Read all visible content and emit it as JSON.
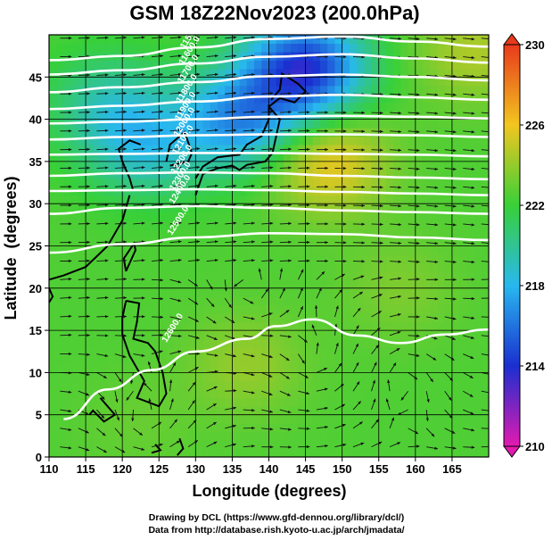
{
  "chart_data": {
    "type": "heatmap",
    "title": "GSM 18Z22Nov2023 (200.0hPa)",
    "xlabel": "Longitude (degrees)",
    "ylabel": "Latitude  (degrees)",
    "xlim": [
      110,
      170
    ],
    "ylim": [
      0,
      50
    ],
    "x_ticks": [
      110,
      115,
      120,
      125,
      130,
      135,
      140,
      145,
      150,
      155,
      160,
      165
    ],
    "y_ticks": [
      0,
      5,
      10,
      15,
      20,
      25,
      30,
      35,
      40,
      45
    ],
    "grid": true,
    "colorbar": {
      "placement": "right",
      "range": [
        210,
        230
      ],
      "ticks": [
        210,
        214,
        218,
        222,
        226,
        230
      ],
      "colors": [
        "#e31ab0",
        "#1a2fd0",
        "#28b8ee",
        "#38d038",
        "#f2c61f",
        "#e83a1c"
      ]
    },
    "shading_centers": [
      {
        "lon": 145,
        "lat": 46,
        "value": 214
      },
      {
        "lon": 136,
        "lat": 40,
        "value": 217
      },
      {
        "lon": 123,
        "lat": 37,
        "value": 219
      },
      {
        "lon": 148,
        "lat": 35,
        "value": 226
      },
      {
        "lon": 118,
        "lat": 42,
        "value": 220
      },
      {
        "lon": 137,
        "lat": 11,
        "value": 224
      },
      {
        "lon": 158,
        "lat": 20,
        "value": 223.5
      },
      {
        "lon": 122,
        "lat": 4,
        "value": 223
      },
      {
        "lon": 168,
        "lat": 48,
        "value": 224.5
      }
    ],
    "contours": [
      {
        "label": "11500.0",
        "points": [
          [
            110,
            47
          ],
          [
            120,
            47.5
          ],
          [
            130,
            48.5
          ],
          [
            140,
            49.5
          ],
          [
            150,
            49.8
          ],
          [
            160,
            49.2
          ],
          [
            170,
            48.6
          ]
        ]
      },
      {
        "label": "11600.0",
        "points": [
          [
            110,
            45.3
          ],
          [
            120,
            45.8
          ],
          [
            130,
            46.6
          ],
          [
            140,
            47.4
          ],
          [
            150,
            47.7
          ],
          [
            160,
            47.2
          ],
          [
            170,
            46.7
          ]
        ]
      },
      {
        "label": "11700.0",
        "points": [
          [
            110,
            43.2
          ],
          [
            120,
            43.8
          ],
          [
            130,
            44.4
          ],
          [
            140,
            45.1
          ],
          [
            150,
            45.3
          ],
          [
            160,
            45
          ],
          [
            170,
            44.6
          ]
        ]
      },
      {
        "label": "11800.0",
        "points": [
          [
            110,
            41.2
          ],
          [
            120,
            41.6
          ],
          [
            130,
            42.1
          ],
          [
            140,
            42.7
          ],
          [
            150,
            42.9
          ],
          [
            160,
            42.6
          ],
          [
            170,
            42.3
          ]
        ]
      },
      {
        "label": "11900.0",
        "points": [
          [
            110,
            39.5
          ],
          [
            120,
            39.7
          ],
          [
            130,
            40
          ],
          [
            140,
            40.3
          ],
          [
            150,
            40.4
          ],
          [
            160,
            40.3
          ],
          [
            170,
            40.1
          ]
        ]
      },
      {
        "label": "12000.0",
        "points": [
          [
            110,
            37.6
          ],
          [
            120,
            37.9
          ],
          [
            130,
            38.1
          ],
          [
            140,
            38.2
          ],
          [
            150,
            38.2
          ],
          [
            160,
            38.1
          ],
          [
            170,
            37.9
          ]
        ]
      },
      {
        "label": "12100.0",
        "points": [
          [
            110,
            35.8
          ],
          [
            120,
            35.9
          ],
          [
            130,
            36
          ],
          [
            140,
            36
          ],
          [
            150,
            35.9
          ],
          [
            160,
            35.8
          ],
          [
            170,
            35.6
          ]
        ]
      },
      {
        "label": "12200.0",
        "points": [
          [
            110,
            33.3
          ],
          [
            120,
            33.6
          ],
          [
            130,
            33.7
          ],
          [
            140,
            33.6
          ],
          [
            150,
            33.3
          ],
          [
            160,
            33.1
          ],
          [
            170,
            32.9
          ]
        ]
      },
      {
        "label": "12300.0",
        "points": [
          [
            110,
            31.5
          ],
          [
            120,
            31.6
          ],
          [
            130,
            31.7
          ],
          [
            140,
            31.6
          ],
          [
            150,
            31.4
          ],
          [
            160,
            31.2
          ],
          [
            170,
            31
          ]
        ]
      },
      {
        "label": "12400.0",
        "points": [
          [
            110,
            28.8
          ],
          [
            120,
            29.5
          ],
          [
            130,
            29.7
          ],
          [
            140,
            29.5
          ],
          [
            150,
            29.2
          ],
          [
            160,
            29
          ],
          [
            170,
            28.8
          ]
        ]
      },
      {
        "label": "12500.0",
        "points": [
          [
            110,
            24.2
          ],
          [
            120,
            25.2
          ],
          [
            130,
            26
          ],
          [
            140,
            26.5
          ],
          [
            150,
            26.4
          ],
          [
            160,
            26
          ],
          [
            170,
            25.7
          ]
        ]
      },
      {
        "label": "12600.0",
        "points": [
          [
            112,
            4.5
          ],
          [
            118,
            8
          ],
          [
            124,
            10.3
          ],
          [
            130,
            12.5
          ],
          [
            137,
            14
          ],
          [
            141,
            15.5
          ],
          [
            146,
            16.3
          ],
          [
            152,
            14.4
          ],
          [
            158,
            13.5
          ],
          [
            164,
            14.5
          ],
          [
            170,
            15.1
          ]
        ]
      }
    ]
  }
}
